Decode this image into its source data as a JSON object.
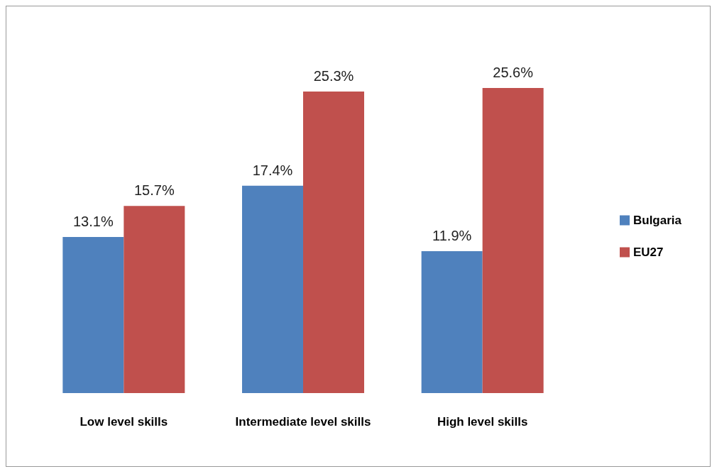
{
  "chart_data": {
    "type": "bar",
    "categories": [
      "Low level skills",
      "Intermediate level skills",
      "High level skills"
    ],
    "series": [
      {
        "name": "Bulgaria",
        "color": "#4f81bd",
        "values": [
          13.1,
          17.4,
          11.9
        ],
        "value_labels": [
          "13.1%",
          "17.4%",
          "11.9%"
        ]
      },
      {
        "name": "EU27",
        "color": "#c0504d",
        "values": [
          15.7,
          25.3,
          25.6
        ],
        "value_labels": [
          "15.7%",
          "25.3%",
          "25.6%"
        ]
      }
    ],
    "legend": "right",
    "grid": false
  }
}
